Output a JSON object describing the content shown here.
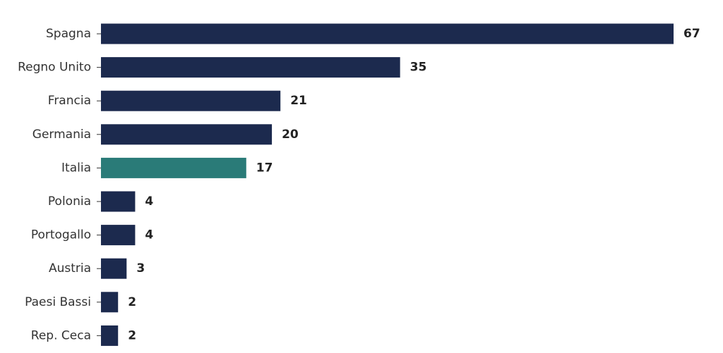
{
  "chart_data": {
    "type": "barh",
    "categories": [
      "Spagna",
      "Regno Unito",
      "Francia",
      "Germania",
      "Italia",
      "Polonia",
      "Portogallo",
      "Austria",
      "Paesi Bassi",
      "Rep. Ceca"
    ],
    "values": [
      67,
      35,
      21,
      20,
      17,
      4,
      4,
      3,
      2,
      2
    ],
    "colors": [
      "#1c2a4e",
      "#1c2a4e",
      "#1c2a4e",
      "#1c2a4e",
      "#2a7b78",
      "#1c2a4e",
      "#1c2a4e",
      "#1c2a4e",
      "#1c2a4e",
      "#1c2a4e"
    ]
  }
}
